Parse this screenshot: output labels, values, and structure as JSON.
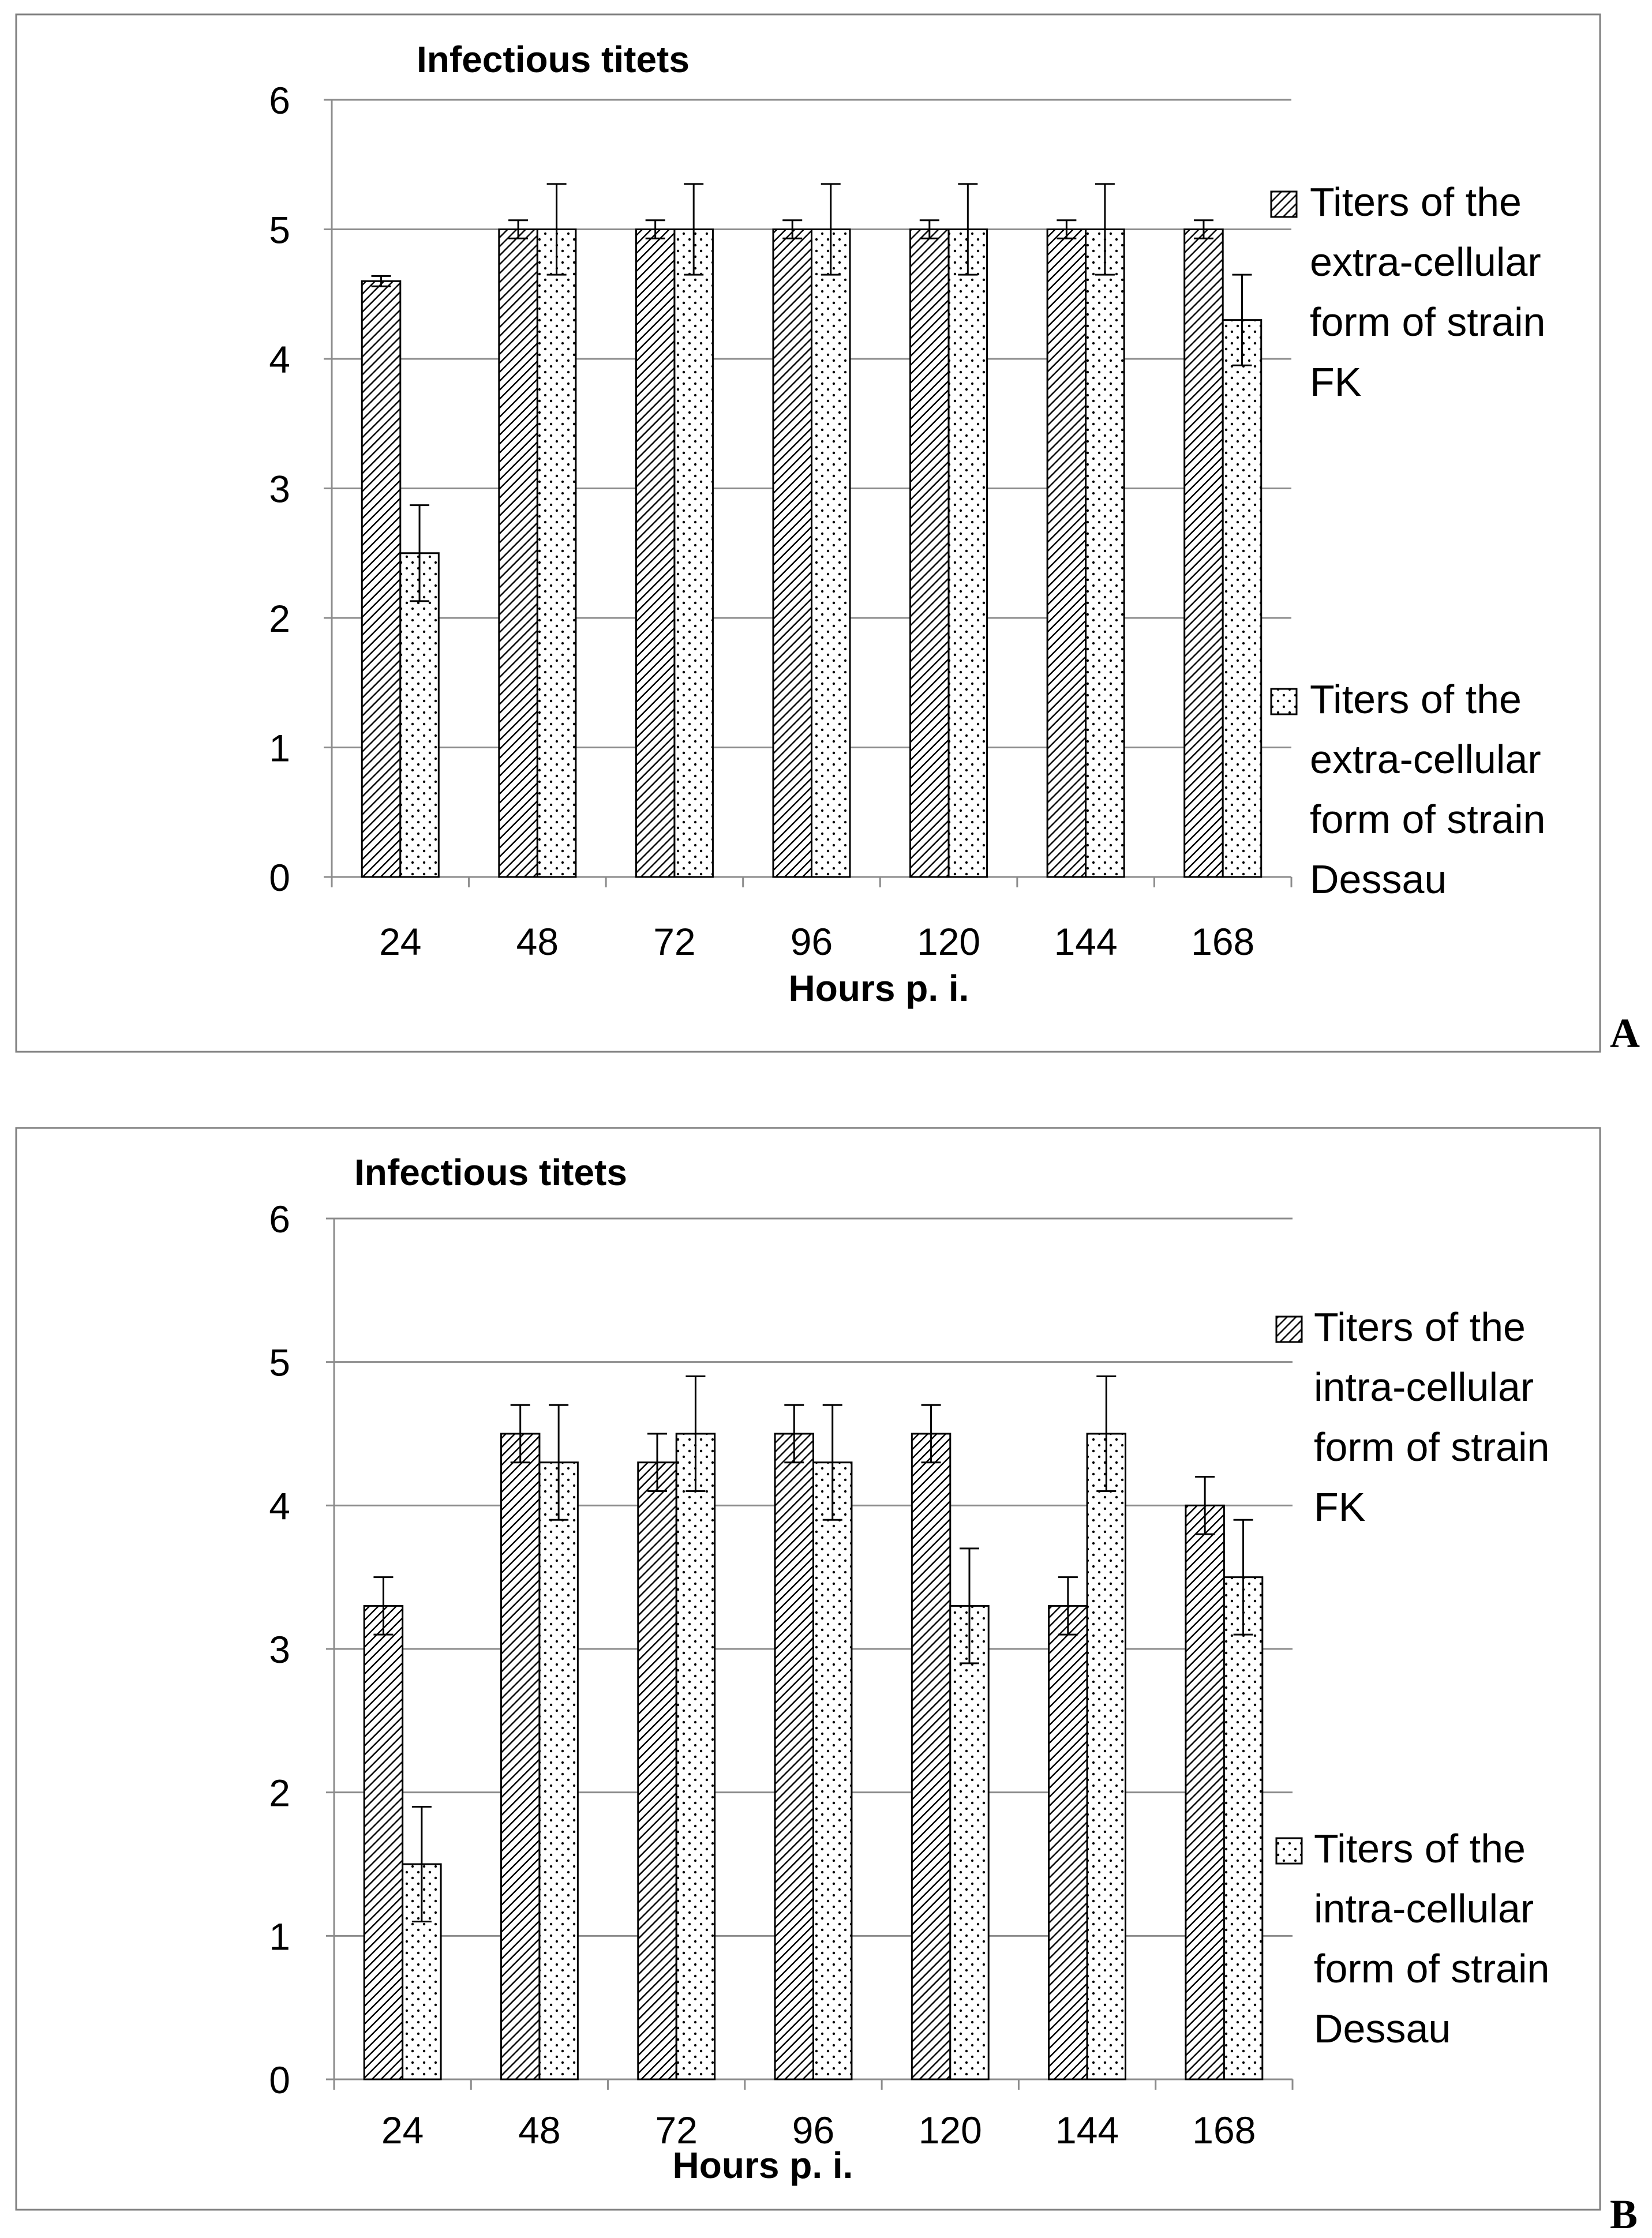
{
  "chart_data": [
    {
      "type": "bar",
      "panel_label": "A",
      "title": "Infectious titets",
      "xlabel": "Hours p. i.",
      "ylabel": "",
      "ylim": [
        0,
        6
      ],
      "yticks": [
        0,
        1,
        2,
        3,
        4,
        5,
        6
      ],
      "grid": true,
      "legend_position": "right",
      "categories": [
        "24",
        "48",
        "72",
        "96",
        "120",
        "144",
        "168"
      ],
      "series": [
        {
          "name": "Titers of the extra-cellular form of strain FK",
          "legend_lines": [
            "Titers of the",
            "extra-cellular",
            "form of strain",
            "FK"
          ],
          "pattern": "hatch",
          "values": [
            4.6,
            5.0,
            5.0,
            5.0,
            5.0,
            5.0,
            5.0
          ],
          "errors": [
            0.04,
            0.07,
            0.07,
            0.07,
            0.07,
            0.07,
            0.07
          ]
        },
        {
          "name": "Titers of the extra-cellular form of strain Dessau",
          "legend_lines": [
            "Titers of the",
            "extra-cellular",
            "form of strain",
            "Dessau"
          ],
          "pattern": "dots",
          "values": [
            2.5,
            5.0,
            5.0,
            5.0,
            5.0,
            5.0,
            4.3
          ],
          "errors": [
            0.37,
            0.35,
            0.35,
            0.35,
            0.35,
            0.35,
            0.35
          ]
        }
      ]
    },
    {
      "type": "bar",
      "panel_label": "B",
      "title": "Infectious titets",
      "xlabel": "Hours p. i.",
      "ylabel": "",
      "ylim": [
        0,
        6
      ],
      "yticks": [
        0,
        1,
        2,
        3,
        4,
        5,
        6
      ],
      "grid": true,
      "legend_position": "right",
      "categories": [
        "24",
        "48",
        "72",
        "96",
        "120",
        "144",
        "168"
      ],
      "series": [
        {
          "name": "Titers of the intra-cellular form of strain FK",
          "legend_lines": [
            "Titers of the",
            "intra-cellular",
            "form of strain",
            "FK"
          ],
          "pattern": "hatch",
          "values": [
            3.3,
            4.5,
            4.3,
            4.5,
            4.5,
            3.3,
            4.0
          ],
          "errors": [
            0.2,
            0.2,
            0.2,
            0.2,
            0.2,
            0.2,
            0.2
          ]
        },
        {
          "name": "Titers of the intra-cellular form of strain Dessau",
          "legend_lines": [
            "Titers of the",
            "intra-cellular",
            "form of strain",
            "Dessau"
          ],
          "pattern": "dots",
          "values": [
            1.5,
            4.3,
            4.5,
            4.3,
            3.3,
            4.5,
            3.5
          ],
          "errors": [
            0.4,
            0.4,
            0.4,
            0.4,
            0.4,
            0.4,
            0.4
          ]
        }
      ]
    }
  ]
}
